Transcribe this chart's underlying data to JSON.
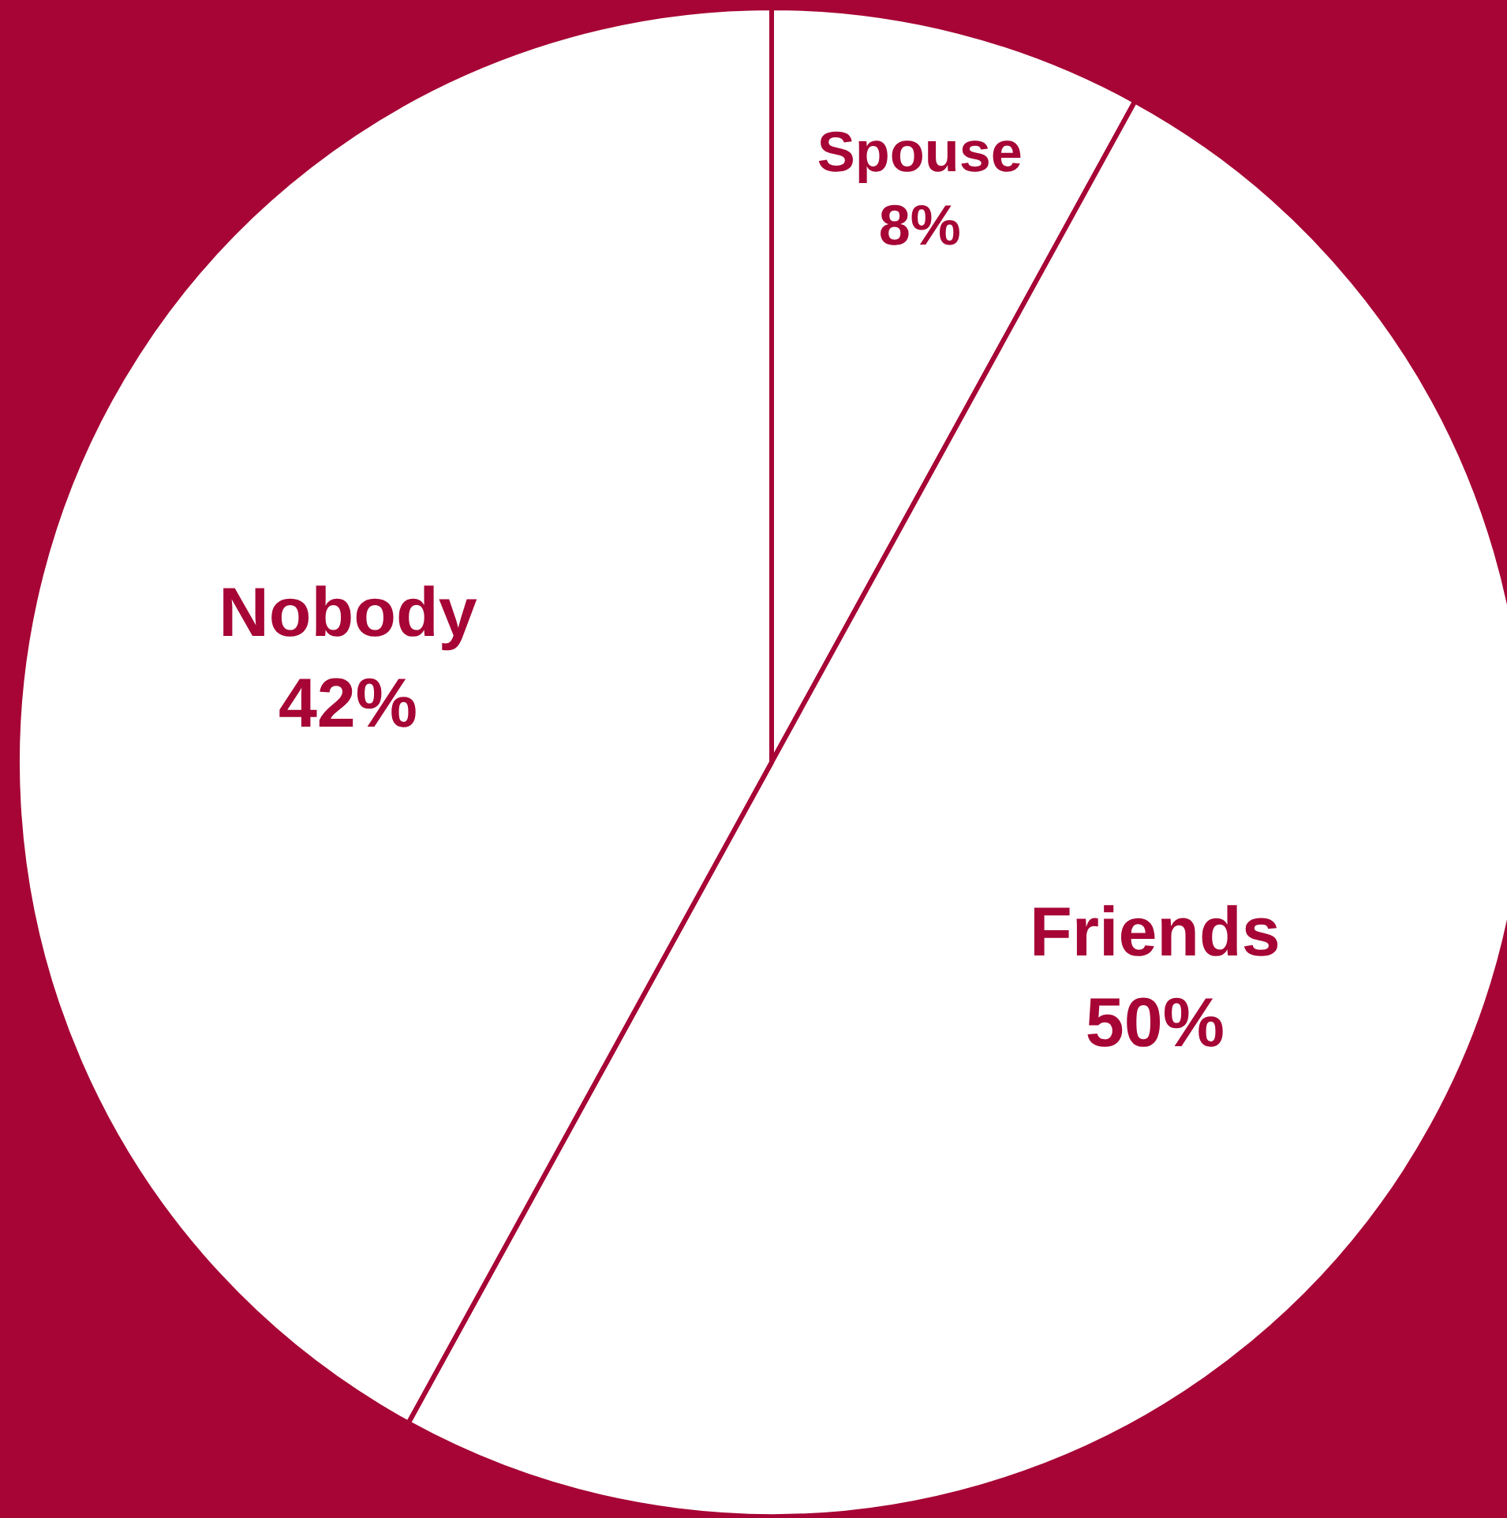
{
  "chart_data": {
    "type": "pie",
    "categories": [
      "Spouse",
      "Friends",
      "Nobody"
    ],
    "values": [
      8,
      50,
      42
    ],
    "colors": [
      "#ffffff",
      "#ffffff",
      "#ffffff"
    ],
    "value_labels": [
      "8%",
      "50%",
      "42%"
    ]
  }
}
